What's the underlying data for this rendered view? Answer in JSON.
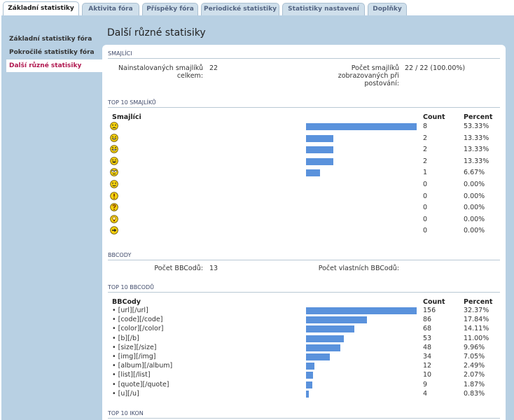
{
  "tabs": [
    {
      "label": "Základní statistiky",
      "active": true
    },
    {
      "label": "Aktivita fóra",
      "active": false
    },
    {
      "label": "Příspěky fóra",
      "active": false
    },
    {
      "label": "Periodické statistiky",
      "active": false
    },
    {
      "label": "Statistiky nastavení",
      "active": false
    },
    {
      "label": "Doplňky",
      "active": false
    }
  ],
  "sidebar": {
    "items": [
      {
        "label": "Základní statistiky fóra",
        "active": false
      },
      {
        "label": "Pokročilé statistiky fóra",
        "active": false
      },
      {
        "label": "Další různé statisiky",
        "active": true
      }
    ]
  },
  "page_title": "Další různé statisiky",
  "smajlici": {
    "heading": "SMAJLÍCI",
    "installed_label": "Nainstalovaných smajlíků celkem:",
    "installed_value": "22",
    "shown_label": "Počet smajlíků zobrazovaných při postování:",
    "shown_value": "22 / 22 (100.00%)"
  },
  "top_smajliku": {
    "heading": "TOP 10 SMAJLÍKŮ",
    "col_name": "Smajlíci",
    "col_count": "Count",
    "col_percent": "Percent",
    "rows": [
      {
        "icon": "sad-face-icon",
        "count": "8",
        "percent": "53.33%",
        "fraction": 0.5333
      },
      {
        "icon": "grin-face-icon",
        "count": "2",
        "percent": "13.33%",
        "fraction": 0.1333
      },
      {
        "icon": "big-grin-face-icon",
        "count": "2",
        "percent": "13.33%",
        "fraction": 0.1333
      },
      {
        "icon": "wink-face-icon",
        "count": "2",
        "percent": "13.33%",
        "fraction": 0.1333
      },
      {
        "icon": "rolling-eyes-face-icon",
        "count": "1",
        "percent": "6.67%",
        "fraction": 0.0667
      },
      {
        "icon": "smile-face-icon",
        "count": "0",
        "percent": "0.00%",
        "fraction": 0
      },
      {
        "icon": "exclamation-icon",
        "count": "0",
        "percent": "0.00%",
        "fraction": 0
      },
      {
        "icon": "question-icon",
        "count": "0",
        "percent": "0.00%",
        "fraction": 0
      },
      {
        "icon": "idea-icon",
        "count": "0",
        "percent": "0.00%",
        "fraction": 0
      },
      {
        "icon": "arrow-icon",
        "count": "0",
        "percent": "0.00%",
        "fraction": 0
      }
    ]
  },
  "bbcody": {
    "heading": "BBCODY",
    "count_label": "Počet BBCodů:",
    "count_value": "13",
    "custom_label": "Počet vlastních BBCodů:",
    "custom_value": ""
  },
  "top_bbcodu": {
    "heading": "TOP 10 BBCODŮ",
    "col_name": "BBCody",
    "col_count": "Count",
    "col_percent": "Percent",
    "rows": [
      {
        "label": "• [url][/url]",
        "count": "156",
        "percent": "32.37%",
        "fraction": 0.3237
      },
      {
        "label": "• [code][/code]",
        "count": "86",
        "percent": "17.84%",
        "fraction": 0.1784
      },
      {
        "label": "• [color][/color]",
        "count": "68",
        "percent": "14.11%",
        "fraction": 0.1411
      },
      {
        "label": "• [b][/b]",
        "count": "53",
        "percent": "11.00%",
        "fraction": 0.11
      },
      {
        "label": "• [size][/size]",
        "count": "48",
        "percent": "9.96%",
        "fraction": 0.0996
      },
      {
        "label": "• [img][/img]",
        "count": "34",
        "percent": "7.05%",
        "fraction": 0.0705
      },
      {
        "label": "• [album][/album]",
        "count": "12",
        "percent": "2.49%",
        "fraction": 0.0249
      },
      {
        "label": "• [list][/list]",
        "count": "10",
        "percent": "2.07%",
        "fraction": 0.0207
      },
      {
        "label": "• [quote][/quote]",
        "count": "9",
        "percent": "1.87%",
        "fraction": 0.0187
      },
      {
        "label": "• [u][/u]",
        "count": "4",
        "percent": "0.83%",
        "fraction": 0.0083
      }
    ]
  },
  "top_ikon": {
    "heading": "TOP 10 IKON"
  },
  "colors": {
    "bar": "#5a92dc",
    "frame": "#b8d0e3",
    "active_link": "#b0174f"
  }
}
